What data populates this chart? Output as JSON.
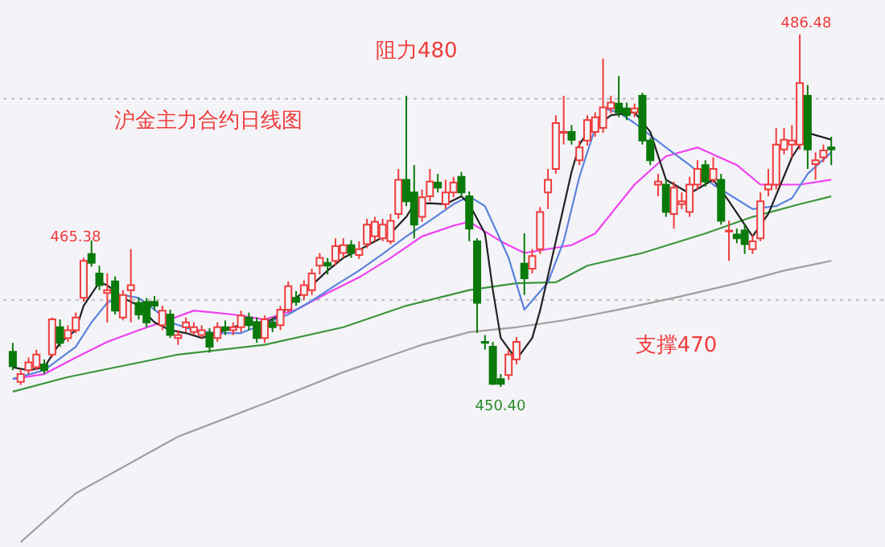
{
  "chart_data": {
    "type": "candlestick",
    "title": "沪金主力合约日线图",
    "categories": [
      null,
      null,
      null,
      null,
      null,
      null,
      null,
      null,
      null,
      null,
      null,
      null,
      null,
      null,
      null,
      null,
      null,
      null,
      null,
      null,
      null,
      null,
      null,
      null,
      null,
      null,
      null,
      null,
      null,
      null,
      null,
      null,
      null,
      null,
      null,
      null,
      null,
      null,
      null,
      null,
      null,
      null,
      null,
      null,
      null,
      null,
      null,
      null,
      null,
      null,
      null,
      null,
      null,
      null,
      null,
      null,
      null,
      null,
      null,
      null,
      null,
      null,
      null,
      null,
      null,
      null,
      null,
      null,
      null,
      null,
      null,
      null,
      null,
      null,
      null,
      null,
      null,
      null,
      null,
      null,
      null,
      null,
      null,
      null,
      null,
      null,
      null,
      null,
      null,
      null,
      null,
      null,
      null,
      null,
      null,
      null,
      null,
      null,
      null,
      null,
      null,
      null,
      null,
      null,
      null
    ],
    "ohlc": [
      [
        454.0,
        454.9,
        452.1,
        452.5
      ],
      [
        450.9,
        452.2,
        450.6,
        451.7
      ],
      [
        452.1,
        453.4,
        451.7,
        452.9
      ],
      [
        452.4,
        454.2,
        452.1,
        453.7
      ],
      [
        452.7,
        453.2,
        451.7,
        452.1
      ],
      [
        453.7,
        457.5,
        453.4,
        457.3
      ],
      [
        456.5,
        457.3,
        454.5,
        454.9
      ],
      [
        455.4,
        456.7,
        455.0,
        456.2
      ],
      [
        456.2,
        458.0,
        455.9,
        457.5
      ],
      [
        459.5,
        463.6,
        459.1,
        463.3
      ],
      [
        464.0,
        465.38,
        462.7,
        463.1
      ],
      [
        462.0,
        462.8,
        460.3,
        460.8
      ],
      [
        460.0,
        462.0,
        457.0,
        460.3
      ],
      [
        461.2,
        461.7,
        457.8,
        458.2
      ],
      [
        457.5,
        460.3,
        457.2,
        459.8
      ],
      [
        460.3,
        464.5,
        457.0,
        460.8
      ],
      [
        459.0,
        459.5,
        457.3,
        457.8
      ],
      [
        459.1,
        459.5,
        456.5,
        457.0
      ],
      [
        459.1,
        459.7,
        458.2,
        458.7
      ],
      [
        456.7,
        458.7,
        456.2,
        458.2
      ],
      [
        457.8,
        458.3,
        455.4,
        455.7
      ],
      [
        455.4,
        456.2,
        454.7,
        455.7
      ],
      [
        456.5,
        457.5,
        456.0,
        457.0
      ],
      [
        456.0,
        457.0,
        455.7,
        456.5
      ],
      [
        455.7,
        456.7,
        455.4,
        456.2
      ],
      [
        455.9,
        456.4,
        453.9,
        454.5
      ],
      [
        455.4,
        457.0,
        455.0,
        456.5
      ],
      [
        456.5,
        457.2,
        455.7,
        456.2
      ],
      [
        456.2,
        457.0,
        455.7,
        456.5
      ],
      [
        456.5,
        458.2,
        456.0,
        457.7
      ],
      [
        457.5,
        458.0,
        456.2,
        456.7
      ],
      [
        457.0,
        457.5,
        454.9,
        455.4
      ],
      [
        455.4,
        457.7,
        454.9,
        457.3
      ],
      [
        457.0,
        457.5,
        456.0,
        456.5
      ],
      [
        456.7,
        458.7,
        456.2,
        458.3
      ],
      [
        458.3,
        461.2,
        458.0,
        460.7
      ],
      [
        459.5,
        460.2,
        458.7,
        459.1
      ],
      [
        459.8,
        461.3,
        459.3,
        460.8
      ],
      [
        460.3,
        462.5,
        459.8,
        462.0
      ],
      [
        462.8,
        464.1,
        461.9,
        463.6
      ],
      [
        463.1,
        463.6,
        461.9,
        462.8
      ],
      [
        463.3,
        465.6,
        462.8,
        464.8
      ],
      [
        464.1,
        465.6,
        463.6,
        464.9
      ],
      [
        464.9,
        465.4,
        463.6,
        464.1
      ],
      [
        463.9,
        465.3,
        463.5,
        464.5
      ],
      [
        465.0,
        467.6,
        464.6,
        467.0
      ],
      [
        465.8,
        467.8,
        465.3,
        467.3
      ],
      [
        465.6,
        467.6,
        465.3,
        467.0
      ],
      [
        465.3,
        468.1,
        465.0,
        467.4
      ],
      [
        468.1,
        472.7,
        467.6,
        471.6
      ],
      [
        471.6,
        480.2,
        468.9,
        469.4
      ],
      [
        470.3,
        473.1,
        465.6,
        467.0
      ],
      [
        467.8,
        470.6,
        467.3,
        469.8
      ],
      [
        469.9,
        472.7,
        469.4,
        471.4
      ],
      [
        471.3,
        472.2,
        470.3,
        470.8
      ],
      [
        469.1,
        471.6,
        468.6,
        470.3
      ],
      [
        470.3,
        471.9,
        469.8,
        471.3
      ],
      [
        471.9,
        472.4,
        469.9,
        470.3
      ],
      [
        469.9,
        470.4,
        465.3,
        466.6
      ],
      [
        465.3,
        465.6,
        455.9,
        459.0
      ],
      [
        455.0,
        455.7,
        454.2,
        454.9
      ],
      [
        454.5,
        455.0,
        450.6,
        450.7
      ],
      [
        451.2,
        451.7,
        450.4,
        450.7
      ],
      [
        451.6,
        454.2,
        451.1,
        453.7
      ],
      [
        453.2,
        455.5,
        452.7,
        455.0
      ],
      [
        463.0,
        466.1,
        459.8,
        461.5
      ],
      [
        462.5,
        464.5,
        462.0,
        463.8
      ],
      [
        464.5,
        468.8,
        464.0,
        468.3
      ],
      [
        470.3,
        472.7,
        468.6,
        471.6
      ],
      [
        472.7,
        478.2,
        472.2,
        477.4
      ],
      [
        476.4,
        480.2,
        475.2,
        476.5
      ],
      [
        476.5,
        477.2,
        475.2,
        475.7
      ],
      [
        473.6,
        475.6,
        473.1,
        474.9
      ],
      [
        475.6,
        478.2,
        475.1,
        477.7
      ],
      [
        476.5,
        478.5,
        476.0,
        478.0
      ],
      [
        476.9,
        484.0,
        476.4,
        479.0
      ],
      [
        478.9,
        480.2,
        478.4,
        479.5
      ],
      [
        479.4,
        482.2,
        478.0,
        478.5
      ],
      [
        478.9,
        479.5,
        477.7,
        478.2
      ],
      [
        478.5,
        479.4,
        478.0,
        478.9
      ],
      [
        480.2,
        480.5,
        475.2,
        475.6
      ],
      [
        475.6,
        475.9,
        473.1,
        473.6
      ],
      [
        471.1,
        472.2,
        469.9,
        471.4
      ],
      [
        471.1,
        471.6,
        467.8,
        468.3
      ],
      [
        468.1,
        471.4,
        466.6,
        470.8
      ],
      [
        469.1,
        470.3,
        468.6,
        469.4
      ],
      [
        468.3,
        471.9,
        467.8,
        471.1
      ],
      [
        471.1,
        473.6,
        470.6,
        472.7
      ],
      [
        473.1,
        473.6,
        470.9,
        471.4
      ],
      [
        471.6,
        473.9,
        471.3,
        472.7
      ],
      [
        471.6,
        472.2,
        467.0,
        467.4
      ],
      [
        466.3,
        467.4,
        463.3,
        466.4
      ],
      [
        466.0,
        466.6,
        465.1,
        465.6
      ],
      [
        466.4,
        467.0,
        464.0,
        465.0
      ],
      [
        464.5,
        466.0,
        464.0,
        465.3
      ],
      [
        465.6,
        470.3,
        465.3,
        469.4
      ],
      [
        470.6,
        472.7,
        469.9,
        471.1
      ],
      [
        471.1,
        476.9,
        470.6,
        475.2
      ],
      [
        474.7,
        476.9,
        474.2,
        475.7
      ],
      [
        475.2,
        477.2,
        473.9,
        475.6
      ],
      [
        475.2,
        486.48,
        474.7,
        481.5
      ],
      [
        480.2,
        481.3,
        472.7,
        474.7
      ],
      [
        473.2,
        474.4,
        471.6,
        473.6
      ],
      [
        473.9,
        475.2,
        473.4,
        474.6
      ],
      [
        474.9,
        476.0,
        473.1,
        474.7
      ]
    ],
    "colors": [
      "#0a7a0a",
      "#f03c3c",
      "#f03c3c",
      "#f03c3c",
      "#0a7a0a",
      "#f03c3c",
      "#0a7a0a",
      "#f03c3c",
      "#f03c3c",
      "#f03c3c",
      "#0a7a0a",
      "#0a7a0a",
      "#f03c3c",
      "#0a7a0a",
      "#f03c3c",
      "#f03c3c",
      "#0a7a0a",
      "#0a7a0a",
      "#0a7a0a",
      "#f03c3c",
      "#0a7a0a",
      "#f03c3c",
      "#f03c3c",
      "#f03c3c",
      "#f03c3c",
      "#0a7a0a",
      "#f03c3c",
      "#0a7a0a",
      "#f03c3c",
      "#f03c3c",
      "#0a7a0a",
      "#0a7a0a",
      "#f03c3c",
      "#0a7a0a",
      "#f03c3c",
      "#f03c3c",
      "#0a7a0a",
      "#f03c3c",
      "#f03c3c",
      "#f03c3c",
      "#0a7a0a",
      "#f03c3c",
      "#f03c3c",
      "#0a7a0a",
      "#f03c3c",
      "#f03c3c",
      "#f03c3c",
      "#f03c3c",
      "#f03c3c",
      "#f03c3c",
      "#0a7a0a",
      "#0a7a0a",
      "#f03c3c",
      "#f03c3c",
      "#0a7a0a",
      "#f03c3c",
      "#f03c3c",
      "#0a7a0a",
      "#0a7a0a",
      "#0a7a0a",
      "#0a7a0a",
      "#0a7a0a",
      "#0a7a0a",
      "#f03c3c",
      "#f03c3c",
      "#0a7a0a",
      "#f03c3c",
      "#f03c3c",
      "#f03c3c",
      "#f03c3c",
      "#f03c3c",
      "#0a7a0a",
      "#f03c3c",
      "#f03c3c",
      "#f03c3c",
      "#f03c3c",
      "#f03c3c",
      "#0a7a0a",
      "#0a7a0a",
      "#f03c3c",
      "#0a7a0a",
      "#0a7a0a",
      "#f03c3c",
      "#0a7a0a",
      "#f03c3c",
      "#f03c3c",
      "#f03c3c",
      "#f03c3c",
      "#0a7a0a",
      "#f03c3c",
      "#0a7a0a",
      "#f03c3c",
      "#0a7a0a",
      "#0a7a0a",
      "#f03c3c",
      "#f03c3c",
      "#f03c3c",
      "#f03c3c",
      "#f03c3c",
      "#f03c3c",
      "#f03c3c",
      "#0a7a0a",
      "#f03c3c",
      "#f03c3c",
      "#0a7a0a"
    ],
    "series": [
      {
        "type": "line",
        "color": "#a0a0a0",
        "values": [
          null,
          434.5,
          null,
          null,
          null,
          null,
          null,
          null,
          439.5,
          null,
          null,
          null,
          null,
          null,
          null,
          null,
          null,
          null,
          null,
          null,
          null,
          445.3,
          null,
          null,
          null,
          null,
          null,
          null,
          null,
          null,
          null,
          null,
          448.7,
          null,
          null,
          null,
          null,
          null,
          null,
          null,
          null,
          null,
          451.9,
          null,
          null,
          null,
          null,
          null,
          null,
          null,
          null,
          null,
          454.7,
          null,
          null,
          null,
          null,
          null,
          456.0,
          null,
          null,
          null,
          null,
          null,
          456.5,
          null,
          null,
          null,
          null,
          null,
          457.2,
          null,
          null,
          null,
          null,
          null,
          null,
          458.3,
          null,
          null,
          null,
          null,
          null,
          null,
          459.5,
          null,
          null,
          null,
          null,
          null,
          null,
          null,
          461.0,
          null,
          null,
          null,
          null,
          null,
          462.3,
          null,
          null,
          null,
          null,
          null,
          463.3
        ]
      },
      {
        "type": "line",
        "color": "#3c963c",
        "values": [
          449.9,
          null,
          null,
          null,
          null,
          null,
          null,
          451.4,
          null,
          null,
          null,
          null,
          null,
          null,
          null,
          null,
          null,
          null,
          null,
          null,
          null,
          453.7,
          null,
          null,
          null,
          null,
          null,
          null,
          null,
          null,
          null,
          null,
          454.7,
          null,
          null,
          null,
          null,
          null,
          null,
          null,
          null,
          null,
          456.5,
          null,
          null,
          null,
          null,
          null,
          null,
          null,
          458.7,
          null,
          null,
          null,
          null,
          null,
          null,
          null,
          460.3,
          null,
          null,
          null,
          null,
          null,
          461.0,
          null,
          null,
          null,
          null,
          461.1,
          null,
          null,
          null,
          462.8,
          null,
          null,
          null,
          null,
          null,
          null,
          464.1,
          null,
          null,
          null,
          null,
          null,
          null,
          null,
          466.1,
          null,
          null,
          null,
          null,
          null,
          467.8,
          null,
          null,
          null,
          null,
          null,
          469.1,
          null,
          null,
          null,
          469.9
        ]
      },
      {
        "type": "line",
        "color": "#f040f0",
        "values": [
          451.2,
          null,
          null,
          null,
          451.7,
          null,
          null,
          null,
          453.4,
          null,
          null,
          null,
          455.0,
          null,
          null,
          null,
          456.2,
          null,
          null,
          null,
          457.3,
          null,
          null,
          458.2,
          null,
          null,
          null,
          null,
          457.8,
          null,
          null,
          null,
          457.3,
          null,
          null,
          null,
          458.3,
          null,
          null,
          null,
          460.0,
          null,
          null,
          null,
          461.6,
          null,
          null,
          null,
          463.6,
          null,
          null,
          null,
          465.8,
          null,
          null,
          null,
          466.9,
          null,
          467.3,
          null,
          null,
          null,
          465.3,
          null,
          null,
          464.1,
          null,
          null,
          null,
          null,
          null,
          464.9,
          null,
          null,
          466.1,
          null,
          null,
          null,
          null,
          471.1,
          null,
          null,
          null,
          474.0,
          null,
          null,
          null,
          474.9,
          null,
          null,
          null,
          null,
          473.1,
          null,
          null,
          471.1,
          null,
          null,
          null,
          null,
          471.1,
          null,
          null,
          null,
          471.6
        ]
      },
      {
        "type": "line",
        "color": "#5a82dc",
        "values": [
          451.2,
          null,
          null,
          null,
          452.1,
          null,
          null,
          null,
          454.5,
          null,
          457.0,
          null,
          459.0,
          null,
          459.8,
          null,
          459.5,
          null,
          458.3,
          null,
          457.0,
          null,
          null,
          456.2,
          null,
          null,
          455.9,
          null,
          null,
          455.9,
          null,
          null,
          null,
          null,
          null,
          457.8,
          null,
          null,
          459.2,
          null,
          null,
          460.8,
          null,
          null,
          462.3,
          null,
          null,
          464.0,
          null,
          null,
          465.8,
          null,
          null,
          467.4,
          null,
          null,
          469.1,
          null,
          469.9,
          null,
          468.9,
          null,
          null,
          463.6,
          null,
          458.3,
          null,
          null,
          461.1,
          null,
          465.3,
          null,
          471.9,
          null,
          476.9,
          478.9,
          null,
          478.5,
          null,
          477.4,
          null,
          null,
          null,
          474.9,
          null,
          null,
          473.1,
          null,
          null,
          471.1,
          null,
          null,
          null,
          null,
          468.6,
          null,
          null,
          468.9,
          null,
          469.7,
          null,
          472.2,
          null,
          null,
          474.4
        ]
      },
      {
        "type": "line",
        "color": "#222222",
        "values": [
          452.4,
          null,
          452.1,
          null,
          452.4,
          null,
          454.9,
          null,
          456.2,
          458.7,
          null,
          461.1,
          460.8,
          null,
          459.5,
          null,
          458.7,
          null,
          457.0,
          null,
          456.2,
          null,
          455.9,
          null,
          455.4,
          null,
          455.9,
          null,
          456.5,
          null,
          457.0,
          null,
          457.0,
          null,
          457.7,
          null,
          459.5,
          null,
          460.8,
          null,
          462.3,
          null,
          463.6,
          null,
          464.4,
          null,
          465.3,
          null,
          466.1,
          null,
          467.8,
          469.1,
          null,
          469.2,
          null,
          469.1,
          null,
          469.9,
          469.1,
          null,
          466.1,
          460.3,
          455.4,
          null,
          453.2,
          null,
          455.4,
          458.2,
          null,
          465.3,
          null,
          472.4,
          475.2,
          476.4,
          null,
          null,
          478.2,
          null,
          null,
          478.5,
          null,
          476.5,
          null,
          471.6,
          null,
          null,
          470.2,
          null,
          null,
          471.6,
          null,
          469.4,
          null,
          null,
          465.8,
          null,
          468.1,
          null,
          null,
          473.9,
          null,
          476.4,
          null,
          null,
          475.7
        ]
      }
    ],
    "ylim": [
      434.0,
      490.0
    ],
    "tick_labels": false,
    "ref_lines": [
      {
        "axis": "y",
        "value": 479.9,
        "label": "阻力480",
        "color": "#bbbbbb",
        "line_style": "dotted"
      },
      {
        "axis": "y",
        "value": 459.3,
        "label": "支撑470",
        "color": "#bbbbbb",
        "line_style": "dotted"
      }
    ],
    "annotations": [
      "465.38",
      "450.40",
      "486.48"
    ]
  }
}
